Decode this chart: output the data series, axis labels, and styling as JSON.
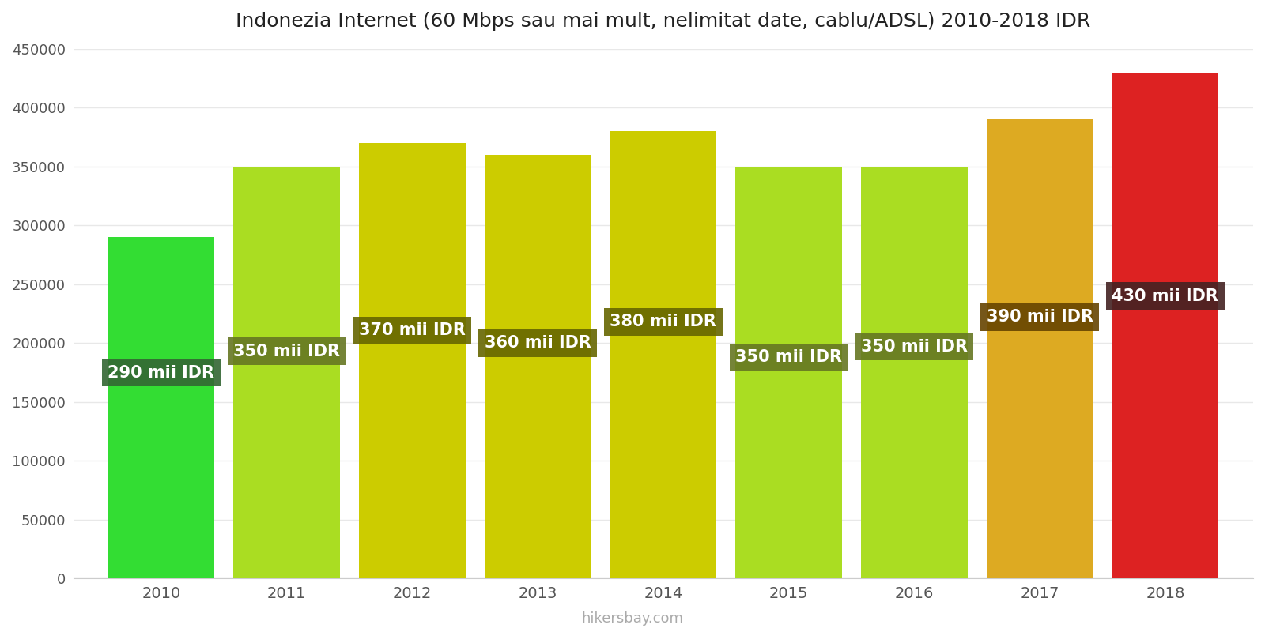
{
  "years": [
    2010,
    2011,
    2012,
    2013,
    2014,
    2015,
    2016,
    2017,
    2018
  ],
  "values": [
    290000,
    350000,
    370000,
    360000,
    380000,
    350000,
    350000,
    390000,
    430000
  ],
  "labels": [
    "290 mii IDR",
    "350 mii IDR",
    "370 mii IDR",
    "360 mii IDR",
    "380 mii IDR",
    "350 mii IDR",
    "350 mii IDR",
    "390 mii IDR",
    "430 mii IDR"
  ],
  "bar_colors": [
    "#33dd33",
    "#aadd22",
    "#cccc00",
    "#cccc00",
    "#cccc00",
    "#aadd22",
    "#aadd22",
    "#ddaa22",
    "#dd2222"
  ],
  "label_bg_colors": [
    "#336633",
    "#667722",
    "#666600",
    "#666600",
    "#666600",
    "#667722",
    "#667722",
    "#664400",
    "#442222"
  ],
  "title": "Indonezia Internet (60 Mbps sau mai mult, nelimitat date, cablu/ADSL) 2010-2018 IDR",
  "ylim": [
    0,
    450000
  ],
  "yticks": [
    0,
    50000,
    100000,
    150000,
    200000,
    250000,
    300000,
    350000,
    400000,
    450000
  ],
  "background_color": "#ffffff",
  "grid_color": "#e8e8e8",
  "label_text_color": "#ffffff",
  "label_fontsize": 15,
  "title_fontsize": 18,
  "bar_width": 0.85,
  "watermark": "hikersbay.com",
  "label_y_values": [
    175000,
    193000,
    211000,
    200000,
    218000,
    188000,
    197000,
    222000,
    240000
  ]
}
